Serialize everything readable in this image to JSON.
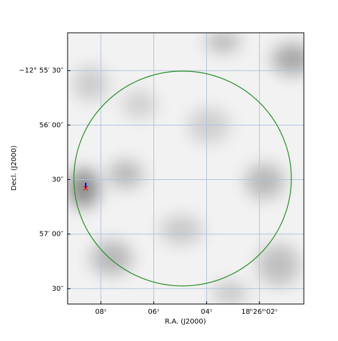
{
  "chart_data": {
    "type": "sky-image",
    "xlabel": "R.A. (J2000)",
    "ylabel": "Decl. (J2000)",
    "xlim": [
      9.26,
      0.32
    ],
    "xticks": [
      {
        "value": 8,
        "label": "08ˢ"
      },
      {
        "value": 6,
        "label": "06ˢ"
      },
      {
        "value": 4,
        "label": "04ˢ"
      },
      {
        "value": 2,
        "label": "18ʰ26ᵐ02ˢ"
      }
    ],
    "ylim": [
      -46658.5,
      -46509.2
    ],
    "yticks": [
      {
        "value": -46530,
        "label": "−12° 55′ 30″"
      },
      {
        "value": -46560,
        "label": "56′ 00″"
      },
      {
        "value": -46590,
        "label": "30″"
      },
      {
        "value": -46620,
        "label": "57′ 00″"
      },
      {
        "value": -46650,
        "label": "30″"
      }
    ],
    "grid": true,
    "grid_color": "#b0c4de"
  }
}
